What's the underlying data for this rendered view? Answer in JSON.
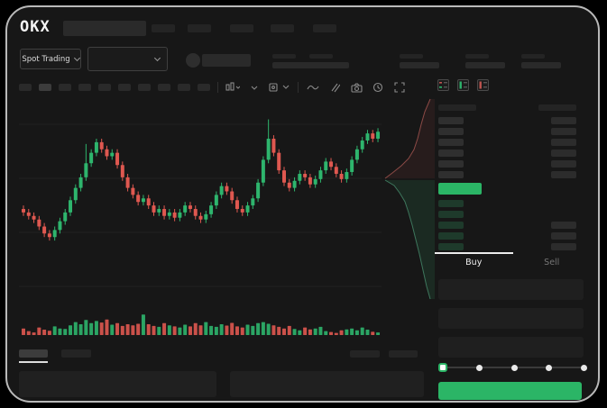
{
  "brand": {
    "logo_text": "OKX"
  },
  "ticker_bar": {
    "market_selector_label": "Spot Trading"
  },
  "toolbar": {
    "timeframe_placeholder_count": 10,
    "icons": [
      "chart-interval-icon",
      "caret-icon",
      "indicators-icon",
      "line-tool-icon",
      "parallel-lines-icon",
      "camera-icon",
      "clock-icon",
      "fullscreen-icon"
    ]
  },
  "orderbook": {
    "view_icons": [
      "book-all-icon",
      "book-bids-icon",
      "book-asks-icon"
    ],
    "ask_row_count": 6,
    "bid_rows": [
      {
        "right": false
      },
      {
        "right": false
      },
      {
        "right": true
      },
      {
        "right": true
      },
      {
        "right": true
      }
    ],
    "ask_bar_color": "#2f2f2f",
    "amount_bar_color": "#2c2c2c",
    "bid_bar_color": "#1e3a2b",
    "price_bar_color": "#2bb566"
  },
  "trade_panel": {
    "buy_tab": "Buy",
    "sell_tab": "Sell",
    "active_tab": "Buy",
    "input_placeholder_count": 3,
    "slider": {
      "stops": 5,
      "active_stop": 0
    },
    "submit_button_color": "#2bb566"
  },
  "chart_data": {
    "type": "candlestick",
    "title": "",
    "xlabel": "",
    "ylabel": "",
    "ylim": [
      0,
      100
    ],
    "grid": true,
    "up_color": "#2eb56d",
    "down_color": "#df5850",
    "first_open": 40,
    "closes": [
      38,
      36,
      34,
      30,
      26,
      24,
      28,
      33,
      38,
      45,
      52,
      58,
      66,
      72,
      78,
      74,
      70,
      72,
      65,
      58,
      52,
      48,
      44,
      46,
      42,
      38,
      40,
      36,
      38,
      35,
      38,
      42,
      40,
      36,
      34,
      37,
      42,
      48,
      53,
      50,
      45,
      40,
      38,
      42,
      46,
      55,
      68,
      80,
      72,
      62,
      55,
      52,
      56,
      60,
      58,
      54,
      57,
      62,
      67,
      64,
      60,
      57,
      61,
      68,
      74,
      79,
      83,
      80,
      84
    ],
    "volumes": [
      30,
      18,
      12,
      35,
      25,
      20,
      40,
      30,
      28,
      45,
      60,
      50,
      70,
      55,
      65,
      58,
      72,
      48,
      55,
      42,
      50,
      45,
      52,
      95,
      50,
      42,
      38,
      55,
      45,
      40,
      35,
      48,
      40,
      55,
      45,
      60,
      42,
      38,
      50,
      44,
      56,
      40,
      35,
      48,
      42,
      55,
      60,
      52,
      45,
      38,
      30,
      42,
      28,
      22,
      35,
      26,
      30,
      38,
      18,
      14,
      10,
      22,
      26,
      30,
      22,
      35,
      25,
      15,
      12
    ],
    "tall_wick_indices": [
      12,
      47
    ],
    "depth": {
      "asks_line": [
        [
          52,
          2
        ],
        [
          46,
          16
        ],
        [
          42,
          30
        ],
        [
          38,
          46
        ],
        [
          34,
          58
        ],
        [
          28,
          68
        ],
        [
          20,
          76
        ],
        [
          10,
          84
        ],
        [
          2,
          90
        ]
      ],
      "bids_line": [
        [
          2,
          92
        ],
        [
          12,
          98
        ],
        [
          18,
          106
        ],
        [
          24,
          116
        ],
        [
          28,
          128
        ],
        [
          32,
          142
        ],
        [
          36,
          158
        ],
        [
          40,
          174
        ],
        [
          44,
          192
        ],
        [
          48,
          210
        ],
        [
          52,
          224
        ]
      ],
      "asks_fill": "rgba(190,80,75,0.10)",
      "asks_stroke": "rgba(214,106,100,0.6)",
      "bids_fill": "rgba(52,170,110,0.13)",
      "bids_stroke": "rgba(92,190,145,0.55)"
    }
  }
}
